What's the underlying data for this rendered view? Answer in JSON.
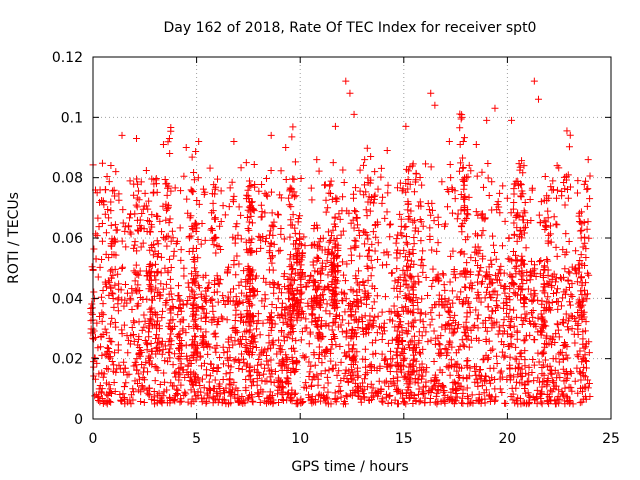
{
  "chart_data": {
    "type": "scatter",
    "title": "Day 162 of 2018, Rate Of TEC Index for receiver spt0",
    "xlabel": "GPS time / hours",
    "ylabel": "ROTI / TECUs",
    "xlim": [
      0,
      25
    ],
    "ylim": [
      0,
      0.12
    ],
    "x_ticks": [
      0,
      5,
      10,
      15,
      20,
      25
    ],
    "x_tick_labels": [
      "0",
      "5",
      "10",
      "15",
      "20",
      "25"
    ],
    "y_ticks": [
      0,
      0.02,
      0.04,
      0.06,
      0.08,
      0.1,
      0.12
    ],
    "y_tick_labels": [
      "0",
      "0.02",
      "0.04",
      "0.06",
      "0.08",
      "0.1",
      "0.12"
    ],
    "grid": true,
    "marker": "+",
    "color": "#ff0000",
    "series": [
      {
        "name": "ROTI",
        "note": "Dense cloud of '+' markers from 0 to 24 h; bulk of values 0.005-0.08 TECU/min, with notable peaks listed below.",
        "bulk_range": [
          0.005,
          0.08
        ],
        "points": [
          {
            "x": 0.2,
            "y": 0.075
          },
          {
            "x": 0.5,
            "y": 0.072
          },
          {
            "x": 1.1,
            "y": 0.082
          },
          {
            "x": 1.4,
            "y": 0.094
          },
          {
            "x": 2.1,
            "y": 0.093
          },
          {
            "x": 3.4,
            "y": 0.091
          },
          {
            "x": 3.7,
            "y": 0.088
          },
          {
            "x": 4.5,
            "y": 0.09
          },
          {
            "x": 5.1,
            "y": 0.092
          },
          {
            "x": 6.8,
            "y": 0.092
          },
          {
            "x": 7.4,
            "y": 0.085
          },
          {
            "x": 8.6,
            "y": 0.094
          },
          {
            "x": 9.3,
            "y": 0.09
          },
          {
            "x": 10.8,
            "y": 0.086
          },
          {
            "x": 11.7,
            "y": 0.097
          },
          {
            "x": 12.2,
            "y": 0.112
          },
          {
            "x": 12.4,
            "y": 0.108
          },
          {
            "x": 12.6,
            "y": 0.101
          },
          {
            "x": 13.4,
            "y": 0.087
          },
          {
            "x": 14.2,
            "y": 0.089
          },
          {
            "x": 15.1,
            "y": 0.097
          },
          {
            "x": 16.3,
            "y": 0.108
          },
          {
            "x": 16.5,
            "y": 0.104
          },
          {
            "x": 17.2,
            "y": 0.092
          },
          {
            "x": 17.8,
            "y": 0.1
          },
          {
            "x": 18.5,
            "y": 0.091
          },
          {
            "x": 19.0,
            "y": 0.099
          },
          {
            "x": 19.4,
            "y": 0.103
          },
          {
            "x": 20.2,
            "y": 0.099
          },
          {
            "x": 20.8,
            "y": 0.084
          },
          {
            "x": 21.3,
            "y": 0.112
          },
          {
            "x": 21.5,
            "y": 0.106
          },
          {
            "x": 22.4,
            "y": 0.084
          },
          {
            "x": 23.4,
            "y": 0.079
          },
          {
            "x": 23.9,
            "y": 0.086
          },
          {
            "x": 0.3,
            "y": 0.01
          },
          {
            "x": 2.7,
            "y": 0.008
          },
          {
            "x": 5.6,
            "y": 0.007
          },
          {
            "x": 8.2,
            "y": 0.009
          },
          {
            "x": 10.4,
            "y": 0.008
          },
          {
            "x": 13.1,
            "y": 0.007
          },
          {
            "x": 15.8,
            "y": 0.006
          },
          {
            "x": 18.3,
            "y": 0.008
          },
          {
            "x": 20.5,
            "y": 0.005
          },
          {
            "x": 22.9,
            "y": 0.007
          }
        ]
      }
    ]
  }
}
